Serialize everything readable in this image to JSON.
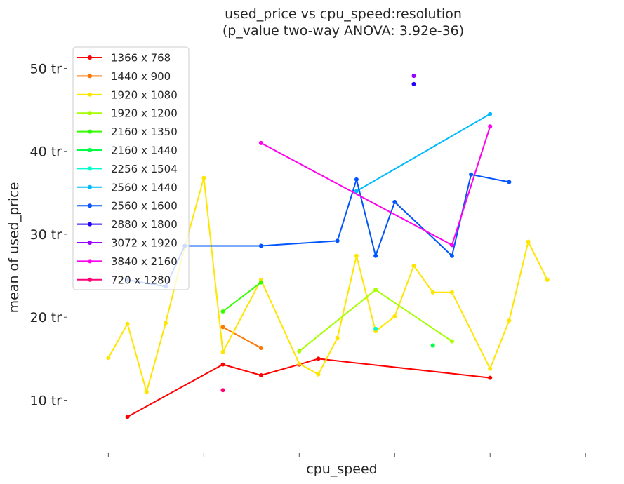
{
  "chart_data": {
    "type": "line",
    "title_line1": "used_price vs cpu_speed:resolution",
    "title_line2": "(p_value two-way ANOVA: 3.92e-36)",
    "xlabel": "cpu_speed",
    "ylabel": "mean of used_price",
    "xlim": [
      1.8,
      4.65
    ],
    "ylim": [
      3.7,
      53
    ],
    "y_ticks": [
      {
        "value": 10,
        "label": "10 tr"
      },
      {
        "value": 20,
        "label": "20 tr"
      },
      {
        "value": 30,
        "label": "30 tr"
      },
      {
        "value": 40,
        "label": "40 tr"
      },
      {
        "value": 50,
        "label": "50 tr"
      }
    ],
    "x_ticks": [
      2.0,
      2.5,
      3.0,
      3.5,
      4.0,
      4.5
    ],
    "x_tick_labels_visible": false,
    "grid": false,
    "legend_position": "top-left",
    "series": [
      {
        "name": "1366 x 768",
        "color": "#ff0000",
        "points": [
          [
            2.1,
            8.0
          ],
          [
            2.6,
            14.3
          ],
          [
            2.8,
            13.0
          ],
          [
            3.0,
            14.3
          ],
          [
            3.1,
            15.0
          ],
          [
            4.0,
            12.7
          ]
        ]
      },
      {
        "name": "1440 x 900",
        "color": "#ff7700",
        "points": [
          [
            2.6,
            18.8
          ],
          [
            2.8,
            16.3
          ]
        ]
      },
      {
        "name": "1920 x 1080",
        "color": "#ffe600",
        "points": [
          [
            2.0,
            15.1
          ],
          [
            2.1,
            19.2
          ],
          [
            2.2,
            11.0
          ],
          [
            2.3,
            19.3
          ],
          [
            2.4,
            28.5
          ],
          [
            2.5,
            36.8
          ],
          [
            2.6,
            15.8
          ],
          [
            2.8,
            24.5
          ],
          [
            3.0,
            14.4
          ],
          [
            3.1,
            13.1
          ],
          [
            3.2,
            17.5
          ],
          [
            3.3,
            27.4
          ],
          [
            3.4,
            18.3
          ],
          [
            3.5,
            20.1
          ],
          [
            3.6,
            26.2
          ],
          [
            3.7,
            23.0
          ],
          [
            3.8,
            23.0
          ],
          [
            4.0,
            13.8
          ],
          [
            4.1,
            19.6
          ],
          [
            4.2,
            29.1
          ],
          [
            4.3,
            24.5
          ]
        ]
      },
      {
        "name": "1920 x 1200",
        "color": "#a6ff00",
        "points": [
          [
            3.0,
            15.9
          ],
          [
            3.4,
            23.3
          ],
          [
            3.8,
            17.1
          ]
        ]
      },
      {
        "name": "2160 x 1350",
        "color": "#33ff00",
        "points": [
          [
            2.6,
            20.7
          ],
          [
            2.8,
            24.2
          ]
        ]
      },
      {
        "name": "2160 x 1440",
        "color": "#00ff44",
        "points": [
          [
            3.7,
            16.6
          ]
        ]
      },
      {
        "name": "2256 x 1504",
        "color": "#00ffcc",
        "points": [
          [
            3.4,
            18.6
          ]
        ]
      },
      {
        "name": "2560 x 1440",
        "color": "#00bbff",
        "points": [
          [
            3.3,
            35.2
          ],
          [
            4.0,
            44.5
          ]
        ]
      },
      {
        "name": "2560 x 1600",
        "color": "#0055ff",
        "points": [
          [
            2.1,
            24.5
          ],
          [
            2.3,
            23.7
          ],
          [
            2.4,
            28.6
          ],
          [
            2.8,
            28.6
          ],
          [
            3.2,
            29.2
          ],
          [
            3.3,
            36.6
          ],
          [
            3.4,
            27.4
          ],
          [
            3.5,
            33.9
          ],
          [
            3.8,
            27.4
          ],
          [
            3.9,
            37.2
          ],
          [
            4.1,
            36.3
          ]
        ]
      },
      {
        "name": "2880 x 1800",
        "color": "#2200ff",
        "points": [
          [
            3.6,
            48.1
          ]
        ]
      },
      {
        "name": "3072 x 1920",
        "color": "#9900ff",
        "points": [
          [
            3.6,
            49.1
          ]
        ]
      },
      {
        "name": "3840 x 2160",
        "color": "#ff00ee",
        "points": [
          [
            2.8,
            41.0
          ],
          [
            3.8,
            28.7
          ],
          [
            4.0,
            43.0
          ]
        ]
      },
      {
        "name": "720 x 1280",
        "color": "#ff0077",
        "points": [
          [
            2.6,
            11.2
          ]
        ]
      }
    ]
  }
}
